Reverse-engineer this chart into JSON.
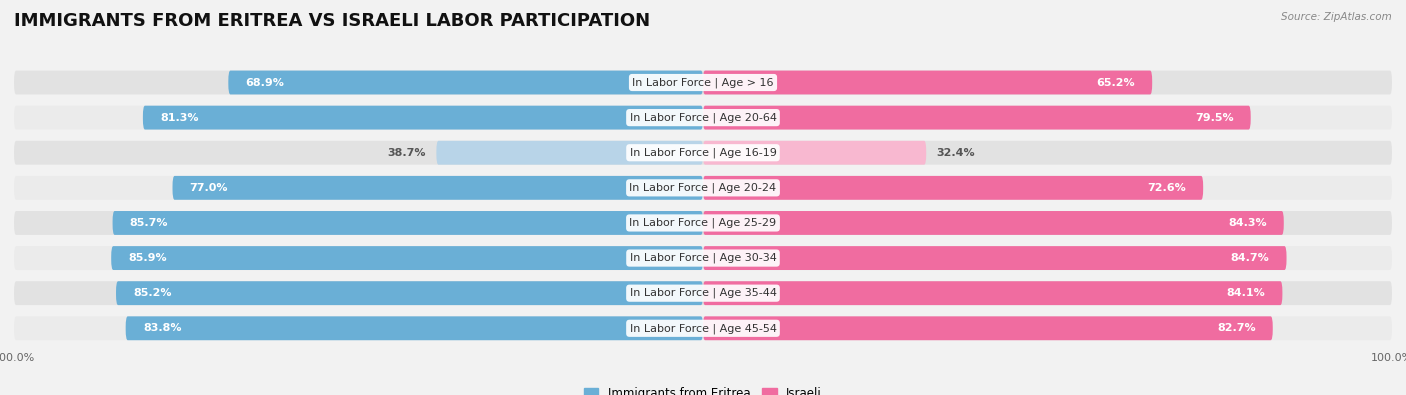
{
  "title": "IMMIGRANTS FROM ERITREA VS ISRAELI LABOR PARTICIPATION",
  "source": "Source: ZipAtlas.com",
  "categories": [
    "In Labor Force | Age > 16",
    "In Labor Force | Age 20-64",
    "In Labor Force | Age 16-19",
    "In Labor Force | Age 20-24",
    "In Labor Force | Age 25-29",
    "In Labor Force | Age 30-34",
    "In Labor Force | Age 35-44",
    "In Labor Force | Age 45-54"
  ],
  "eritrea_values": [
    68.9,
    81.3,
    38.7,
    77.0,
    85.7,
    85.9,
    85.2,
    83.8
  ],
  "israeli_values": [
    65.2,
    79.5,
    32.4,
    72.6,
    84.3,
    84.7,
    84.1,
    82.7
  ],
  "eritrea_color": "#6aafd6",
  "eritrea_color_light": "#b8d4e8",
  "israeli_color": "#f06ca0",
  "israeli_color_light": "#f8b8d0",
  "background_color": "#f2f2f2",
  "row_bg_color_dark": "#e2e2e2",
  "row_bg_color_light": "#ebebeb",
  "max_value": 100.0,
  "legend_eritrea": "Immigrants from Eritrea",
  "legend_israeli": "Israeli",
  "title_fontsize": 13,
  "label_fontsize": 8,
  "value_fontsize": 8,
  "axis_label_fontsize": 8
}
